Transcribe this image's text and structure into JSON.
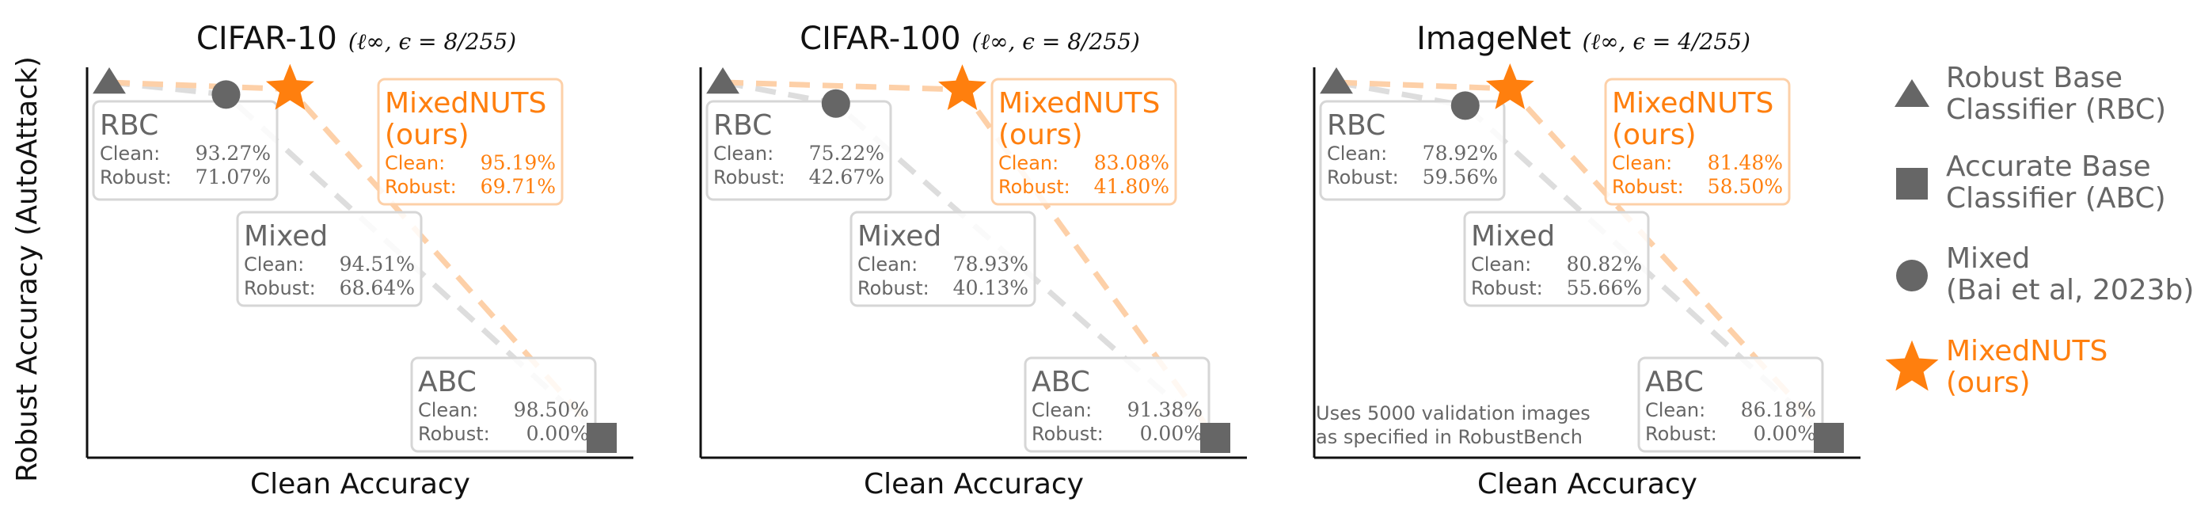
{
  "colors": {
    "gray": "#666666",
    "orange": "#ff7f0e",
    "orange_light": "#fdd0a8",
    "gray_light": "#dddddd",
    "box_border": "#d6d6d6"
  },
  "shared": {
    "xlabel": "Clean Accuracy",
    "ylabel": "Robust Accuracy (AutoAttack)",
    "clean_label": "Clean:",
    "robust_label": "Robust:"
  },
  "chart_data": [
    {
      "type": "scatter",
      "title": "CIFAR-10",
      "title_math": "(ℓ∞, ϵ = 8/255)",
      "xlabel": "Clean Accuracy",
      "points": [
        {
          "key": "rbc",
          "label": "RBC",
          "marker": "triangle",
          "clean": 93.27,
          "robust": 71.07,
          "clean_text": "93.27%",
          "robust_text": "71.07%"
        },
        {
          "key": "mixed",
          "label": "Mixed",
          "marker": "circle",
          "clean": 94.51,
          "robust": 68.64,
          "clean_text": "94.51%",
          "robust_text": "68.64%"
        },
        {
          "key": "abc",
          "label": "ABC",
          "marker": "square",
          "clean": 98.5,
          "robust": 0.0,
          "clean_text": "98.50%",
          "robust_text": "0.00%"
        },
        {
          "key": "ours",
          "label": "MixedNUTS",
          "label2": "(ours)",
          "marker": "star",
          "clean": 95.19,
          "robust": 69.71,
          "clean_text": "95.19%",
          "robust_text": "69.71%"
        }
      ]
    },
    {
      "type": "scatter",
      "title": "CIFAR-100",
      "title_math": "(ℓ∞, ϵ = 8/255)",
      "xlabel": "Clean Accuracy",
      "points": [
        {
          "key": "rbc",
          "label": "RBC",
          "marker": "triangle",
          "clean": 75.22,
          "robust": 42.67,
          "clean_text": "75.22%",
          "robust_text": "42.67%"
        },
        {
          "key": "mixed",
          "label": "Mixed",
          "marker": "circle",
          "clean": 78.93,
          "robust": 40.13,
          "clean_text": "78.93%",
          "robust_text": "40.13%"
        },
        {
          "key": "abc",
          "label": "ABC",
          "marker": "square",
          "clean": 91.38,
          "robust": 0.0,
          "clean_text": "91.38%",
          "robust_text": "0.00%"
        },
        {
          "key": "ours",
          "label": "MixedNUTS",
          "label2": "(ours)",
          "marker": "star",
          "clean": 83.08,
          "robust": 41.8,
          "clean_text": "83.08%",
          "robust_text": "41.80%"
        }
      ]
    },
    {
      "type": "scatter",
      "title": "ImageNet",
      "title_math": "(ℓ∞, ϵ = 4/255)",
      "xlabel": "Clean Accuracy",
      "note_lines": [
        "Uses 5000 validation images",
        "as specified in RobustBench"
      ],
      "points": [
        {
          "key": "rbc",
          "label": "RBC",
          "marker": "triangle",
          "clean": 78.92,
          "robust": 59.56,
          "clean_text": "78.92%",
          "robust_text": "59.56%"
        },
        {
          "key": "mixed",
          "label": "Mixed",
          "marker": "circle",
          "clean": 80.82,
          "robust": 55.66,
          "clean_text": "80.82%",
          "robust_text": "55.66%"
        },
        {
          "key": "abc",
          "label": "ABC",
          "marker": "square",
          "clean": 86.18,
          "robust": 0.0,
          "clean_text": "86.18%",
          "robust_text": "0.00%"
        },
        {
          "key": "ours",
          "label": "MixedNUTS",
          "label2": "(ours)",
          "marker": "star",
          "clean": 81.48,
          "robust": 58.5,
          "clean_text": "81.48%",
          "robust_text": "58.50%"
        }
      ]
    }
  ],
  "legend": {
    "placement": "right",
    "items": [
      {
        "marker": "triangle",
        "lines": [
          "Robust Base",
          "Classifier (RBC)"
        ]
      },
      {
        "marker": "square",
        "lines": [
          "Accurate Base",
          "Classifier (ABC)"
        ]
      },
      {
        "marker": "circle",
        "lines": [
          "Mixed",
          "(Bai et al, 2023b)"
        ]
      },
      {
        "marker": "star",
        "lines": [
          "MixedNUTS",
          "(ours)"
        ]
      }
    ]
  }
}
